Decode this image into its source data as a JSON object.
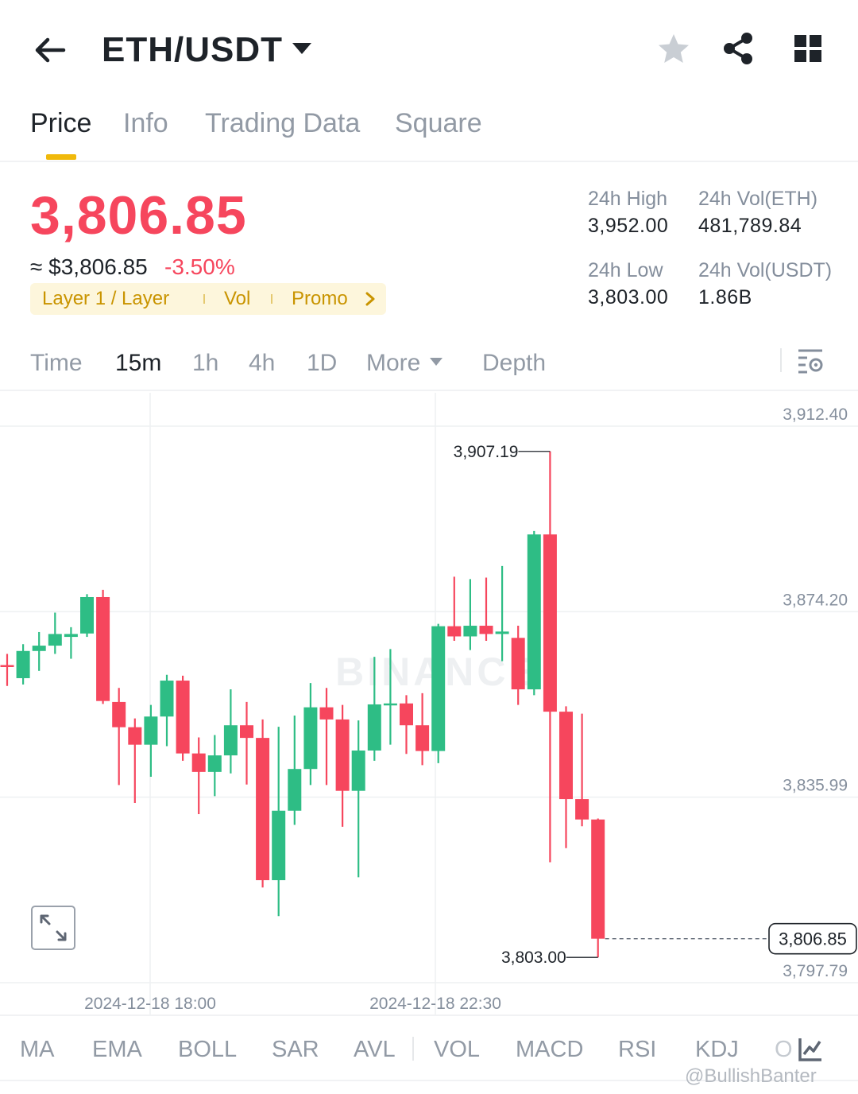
{
  "header": {
    "pair": "ETH/USDT",
    "icons": [
      "back-arrow-icon",
      "chevron-down-icon",
      "star-icon",
      "share-icon",
      "grid-icon"
    ]
  },
  "tabs": [
    {
      "label": "Price",
      "active": true
    },
    {
      "label": "Info"
    },
    {
      "label": "Trading Data"
    },
    {
      "label": "Square"
    }
  ],
  "ticker": {
    "price": "3,806.85",
    "approx": "≈ $3,806.85",
    "change": "-3.50%",
    "tags": [
      "Layer 1 / Layer",
      "Vol",
      "Promo"
    ],
    "high_label": "24h High",
    "high": "3,952.00",
    "low_label": "24h Low",
    "low": "3,803.00",
    "vol_eth_label": "24h Vol(ETH)",
    "vol_eth": "481,789.84",
    "vol_usdt_label": "24h Vol(USDT)",
    "vol_usdt": "1.86B",
    "colors": {
      "down": "#f6465d",
      "up": "#2ebd85",
      "accent": "#f0b90b"
    }
  },
  "intervals": {
    "items": [
      {
        "label": "Time"
      },
      {
        "label": "15m",
        "active": true
      },
      {
        "label": "1h"
      },
      {
        "label": "4h"
      },
      {
        "label": "1D"
      },
      {
        "label": "More"
      },
      {
        "label": "Depth"
      }
    ]
  },
  "chart_data": {
    "type": "candlestick",
    "price_axis": [
      "3,912.40",
      "3,874.20",
      "3,835.99",
      "3,797.79"
    ],
    "ylim": [
      3797.79,
      3912.4
    ],
    "time_labels": [
      "2024-12-18 18:00",
      "2024-12-18 22:30"
    ],
    "high_marker": "3,907.19",
    "low_marker": "3,803.00",
    "last_price": "3,806.85",
    "watermark": "BINANCE",
    "candles": [
      {
        "o": 3863.2,
        "h": 3865.5,
        "l": 3858.9,
        "c": 3863.0
      },
      {
        "o": 3860.5,
        "h": 3867.5,
        "l": 3859.2,
        "c": 3866.1
      },
      {
        "o": 3866.1,
        "h": 3870.0,
        "l": 3862.0,
        "c": 3867.2
      },
      {
        "o": 3867.2,
        "h": 3874.0,
        "l": 3865.5,
        "c": 3869.6
      },
      {
        "o": 3869.0,
        "h": 3871.0,
        "l": 3864.5,
        "c": 3869.6
      },
      {
        "o": 3869.7,
        "h": 3877.8,
        "l": 3869.0,
        "c": 3877.2
      },
      {
        "o": 3877.2,
        "h": 3878.7,
        "l": 3855.2,
        "c": 3855.8
      },
      {
        "o": 3855.6,
        "h": 3858.5,
        "l": 3838.5,
        "c": 3850.4
      },
      {
        "o": 3850.4,
        "h": 3852.2,
        "l": 3834.8,
        "c": 3846.8
      },
      {
        "o": 3846.8,
        "h": 3855.0,
        "l": 3840.2,
        "c": 3852.6
      },
      {
        "o": 3852.6,
        "h": 3861.2,
        "l": 3846.5,
        "c": 3860.0
      },
      {
        "o": 3860.0,
        "h": 3861.0,
        "l": 3843.5,
        "c": 3845.0
      },
      {
        "o": 3845.0,
        "h": 3848.3,
        "l": 3832.5,
        "c": 3841.2
      },
      {
        "o": 3841.2,
        "h": 3848.8,
        "l": 3836.2,
        "c": 3844.6
      },
      {
        "o": 3844.6,
        "h": 3858.2,
        "l": 3840.9,
        "c": 3850.8
      },
      {
        "o": 3850.8,
        "h": 3855.6,
        "l": 3838.6,
        "c": 3848.2
      },
      {
        "o": 3848.2,
        "h": 3852.0,
        "l": 3817.4,
        "c": 3818.9
      },
      {
        "o": 3818.9,
        "h": 3850.5,
        "l": 3811.5,
        "c": 3833.2
      },
      {
        "o": 3833.2,
        "h": 3852.8,
        "l": 3830.3,
        "c": 3841.8
      },
      {
        "o": 3841.8,
        "h": 3859.5,
        "l": 3838.5,
        "c": 3854.5
      },
      {
        "o": 3854.5,
        "h": 3858.5,
        "l": 3838.5,
        "c": 3852.0
      },
      {
        "o": 3852.0,
        "h": 3855.0,
        "l": 3829.9,
        "c": 3837.3
      },
      {
        "o": 3837.3,
        "h": 3851.8,
        "l": 3819.5,
        "c": 3845.6
      },
      {
        "o": 3845.6,
        "h": 3864.9,
        "l": 3843.5,
        "c": 3855.1
      },
      {
        "o": 3855.1,
        "h": 3866.5,
        "l": 3846.8,
        "c": 3855.3
      },
      {
        "o": 3855.3,
        "h": 3857.0,
        "l": 3844.9,
        "c": 3850.8
      },
      {
        "o": 3850.8,
        "h": 3857.4,
        "l": 3842.6,
        "c": 3845.5
      },
      {
        "o": 3845.5,
        "h": 3871.7,
        "l": 3843.0,
        "c": 3871.2
      },
      {
        "o": 3871.2,
        "h": 3881.4,
        "l": 3868.2,
        "c": 3869.1
      },
      {
        "o": 3869.1,
        "h": 3880.9,
        "l": 3866.3,
        "c": 3871.3
      },
      {
        "o": 3871.3,
        "h": 3881.2,
        "l": 3868.2,
        "c": 3869.6
      },
      {
        "o": 3869.6,
        "h": 3883.6,
        "l": 3864.0,
        "c": 3870.1
      },
      {
        "o": 3868.8,
        "h": 3871.3,
        "l": 3855.0,
        "c": 3858.2
      },
      {
        "o": 3858.2,
        "h": 3890.8,
        "l": 3857.0,
        "c": 3890.1
      },
      {
        "o": 3890.1,
        "h": 3907.2,
        "l": 3822.6,
        "c": 3853.6
      },
      {
        "o": 3853.6,
        "h": 3854.7,
        "l": 3825.5,
        "c": 3835.6
      },
      {
        "o": 3835.6,
        "h": 3853.2,
        "l": 3830.0,
        "c": 3831.4
      },
      {
        "o": 3831.4,
        "h": 3831.6,
        "l": 3803.0,
        "c": 3806.85
      }
    ]
  },
  "indicators": [
    "MA",
    "EMA",
    "BOLL",
    "SAR",
    "AVL",
    "VOL",
    "MACD",
    "RSI",
    "KDJ",
    "O"
  ],
  "watermark_text": "@BullishBanter"
}
